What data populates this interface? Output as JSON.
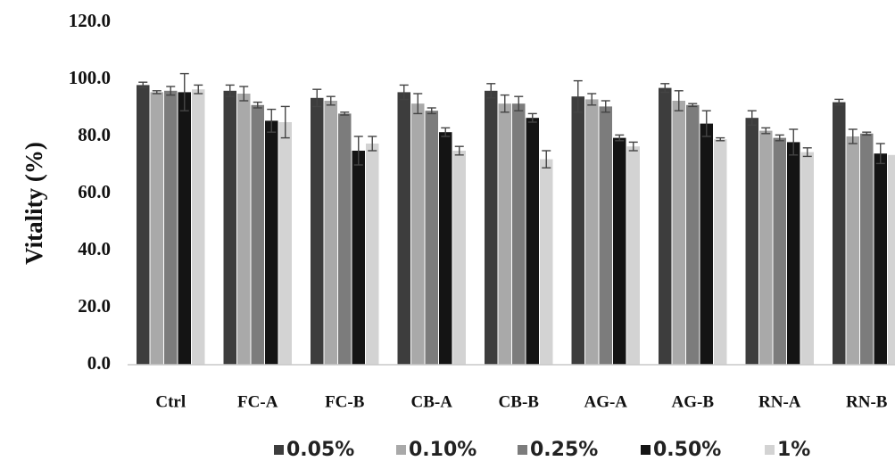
{
  "chart_data": {
    "type": "bar",
    "title": "",
    "xlabel": "",
    "ylabel": "Vitality (%)",
    "ylim": [
      0,
      120
    ],
    "yticks": [
      "0.0",
      "20.0",
      "40.0",
      "60.0",
      "80.0",
      "100.0",
      "120.0"
    ],
    "grid": false,
    "legend_position": "bottom",
    "error_bars": true,
    "categories": [
      "Ctrl",
      "FC-A",
      "FC-B",
      "CB-A",
      "CB-B",
      "AG-A",
      "AG-B",
      "RN-A",
      "RN-B"
    ],
    "series": [
      {
        "name": "0.05%",
        "color": "#3d3d3d",
        "values": [
          98.0,
          96.0,
          93.5,
          95.5,
          96.0,
          94.0,
          97.0,
          86.5,
          92.0
        ],
        "errors": [
          1.0,
          2.0,
          3.0,
          2.5,
          2.5,
          5.5,
          1.5,
          2.5,
          1.0
        ]
      },
      {
        "name": "0.10%",
        "color": "#a9a9a9",
        "values": [
          95.5,
          95.0,
          92.5,
          91.5,
          91.5,
          93.0,
          92.5,
          82.0,
          80.0
        ],
        "errors": [
          0.5,
          2.5,
          1.5,
          3.5,
          3.0,
          2.0,
          3.5,
          1.0,
          2.5
        ]
      },
      {
        "name": "0.25%",
        "color": "#7c7c7c",
        "values": [
          96.0,
          91.0,
          88.0,
          89.0,
          91.5,
          90.5,
          91.0,
          79.5,
          81.0
        ],
        "errors": [
          1.5,
          1.0,
          0.5,
          1.0,
          2.5,
          2.0,
          0.5,
          1.0,
          0.5
        ]
      },
      {
        "name": "0.50%",
        "color": "#141414",
        "values": [
          95.5,
          85.5,
          75.0,
          81.5,
          86.5,
          79.5,
          84.5,
          78.0,
          74.0
        ],
        "errors": [
          6.5,
          4.0,
          5.0,
          1.5,
          1.5,
          1.0,
          4.5,
          4.5,
          3.5
        ]
      },
      {
        "name": "1%",
        "color": "#d3d3d3",
        "values": [
          96.5,
          85.0,
          77.5,
          75.0,
          72.0,
          76.5,
          79.0,
          74.5,
          73.5
        ],
        "errors": [
          1.5,
          5.5,
          2.5,
          1.5,
          3.0,
          1.5,
          0.5,
          1.5,
          1.5
        ]
      }
    ]
  }
}
